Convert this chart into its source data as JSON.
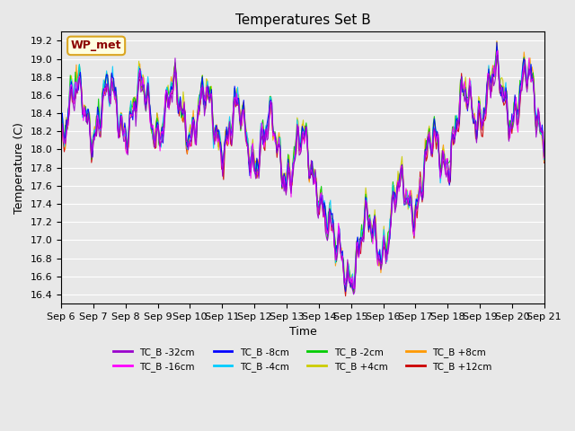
{
  "title": "Temperatures Set B",
  "xlabel": "Time",
  "ylabel": "Temperature (C)",
  "ylim": [
    16.3,
    19.3
  ],
  "yticks": [
    16.4,
    16.6,
    16.8,
    17.0,
    17.2,
    17.4,
    17.6,
    17.8,
    18.0,
    18.2,
    18.4,
    18.6,
    18.8,
    19.0,
    19.2
  ],
  "xtick_positions": [
    0,
    1,
    2,
    3,
    4,
    5,
    6,
    7,
    8,
    9,
    10,
    11,
    12,
    13,
    14,
    15
  ],
  "xtick_labels": [
    "Sep 6",
    "Sep 7",
    "Sep 8",
    "Sep 9",
    "Sep 10",
    "Sep 11",
    "Sep 12",
    "Sep 13",
    "Sep 14",
    "Sep 15",
    "Sep 16",
    "Sep 17",
    "Sep 18",
    "Sep 19",
    "Sep 20",
    "Sep 21"
  ],
  "n_days": 15,
  "n_points": 480,
  "legend_label": "WP_met",
  "series_colors": [
    "#9900cc",
    "#ff00ff",
    "#0000ff",
    "#00ccff",
    "#00cc00",
    "#cccc00",
    "#ff9900",
    "#cc0000"
  ],
  "series_labels": [
    "TC_B -32cm",
    "TC_B -16cm",
    "TC_B -8cm",
    "TC_B -4cm",
    "TC_B -2cm",
    "TC_B +4cm",
    "TC_B +8cm",
    "TC_B +12cm"
  ],
  "background_color": "#e8e8e8"
}
